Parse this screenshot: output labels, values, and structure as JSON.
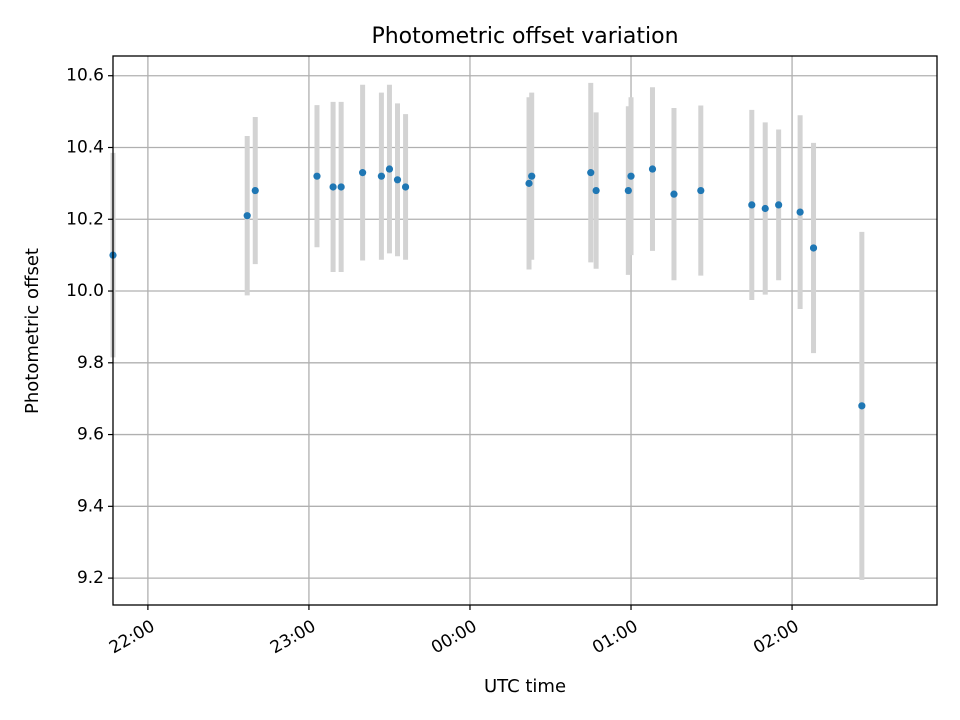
{
  "chart_data": {
    "type": "scatter",
    "title": "Photometric offset variation",
    "xlabel": "UTC time",
    "ylabel": "Photometric offset",
    "grid": true,
    "legend": "none",
    "xlim": [
      "21:47",
      "02:54"
    ],
    "ylim": [
      9.125,
      10.655
    ],
    "x_ticks": [
      "22:00",
      "23:00",
      "00:00",
      "01:00",
      "02:00"
    ],
    "y_ticks": [
      "9.2",
      "9.4",
      "9.6",
      "9.8",
      "10.0",
      "10.2",
      "10.4",
      "10.6"
    ],
    "colors": {
      "marker": "#1f77b4",
      "errorbar": "#d3d3d3"
    },
    "points": [
      {
        "x": "21:47",
        "y": 10.1,
        "err": 0.285
      },
      {
        "x": "22:37",
        "y": 10.21,
        "err": 0.222
      },
      {
        "x": "22:40",
        "y": 10.28,
        "err": 0.205
      },
      {
        "x": "23:03",
        "y": 10.32,
        "err": 0.198
      },
      {
        "x": "23:09",
        "y": 10.29,
        "err": 0.237
      },
      {
        "x": "23:12",
        "y": 10.29,
        "err": 0.237
      },
      {
        "x": "23:20",
        "y": 10.33,
        "err": 0.245
      },
      {
        "x": "23:27",
        "y": 10.32,
        "err": 0.233
      },
      {
        "x": "23:30",
        "y": 10.34,
        "err": 0.235
      },
      {
        "x": "23:33",
        "y": 10.31,
        "err": 0.213
      },
      {
        "x": "23:36",
        "y": 10.29,
        "err": 0.203
      },
      {
        "x": "00:22",
        "y": 10.3,
        "err": 0.24
      },
      {
        "x": "00:23",
        "y": 10.32,
        "err": 0.233
      },
      {
        "x": "00:45",
        "y": 10.33,
        "err": 0.25
      },
      {
        "x": "00:47",
        "y": 10.28,
        "err": 0.218
      },
      {
        "x": "00:59",
        "y": 10.28,
        "err": 0.235
      },
      {
        "x": "01:00",
        "y": 10.32,
        "err": 0.22
      },
      {
        "x": "01:08",
        "y": 10.34,
        "err": 0.228
      },
      {
        "x": "01:16",
        "y": 10.27,
        "err": 0.24
      },
      {
        "x": "01:26",
        "y": 10.28,
        "err": 0.237
      },
      {
        "x": "01:45",
        "y": 10.24,
        "err": 0.265
      },
      {
        "x": "01:50",
        "y": 10.23,
        "err": 0.24
      },
      {
        "x": "01:55",
        "y": 10.24,
        "err": 0.21
      },
      {
        "x": "02:03",
        "y": 10.22,
        "err": 0.27
      },
      {
        "x": "02:08",
        "y": 10.12,
        "err": 0.293
      },
      {
        "x": "02:26",
        "y": 9.68,
        "err": 0.485
      }
    ]
  }
}
